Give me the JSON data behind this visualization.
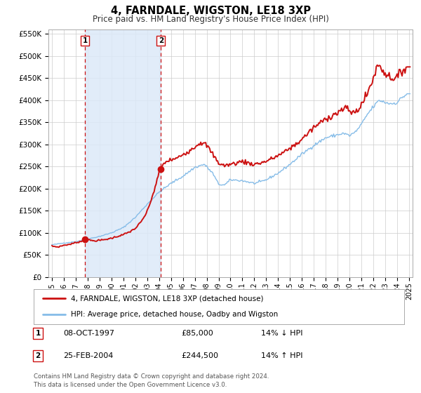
{
  "title": "4, FARNDALE, WIGSTON, LE18 3XP",
  "subtitle": "Price paid vs. HM Land Registry's House Price Index (HPI)",
  "ylim": [
    0,
    560000
  ],
  "xlim_start": 1994.7,
  "xlim_end": 2025.3,
  "yticks": [
    0,
    50000,
    100000,
    150000,
    200000,
    250000,
    300000,
    350000,
    400000,
    450000,
    500000,
    550000
  ],
  "ytick_labels": [
    "£0",
    "£50K",
    "£100K",
    "£150K",
    "£200K",
    "£250K",
    "£300K",
    "£350K",
    "£400K",
    "£450K",
    "£500K",
    "£550K"
  ],
  "xticks": [
    1995,
    1996,
    1997,
    1998,
    1999,
    2000,
    2001,
    2002,
    2003,
    2004,
    2005,
    2006,
    2007,
    2008,
    2009,
    2010,
    2011,
    2012,
    2013,
    2014,
    2015,
    2016,
    2017,
    2018,
    2019,
    2020,
    2021,
    2022,
    2023,
    2024,
    2025
  ],
  "sale1_x": 1997.77,
  "sale1_y": 85000,
  "sale1_label": "1",
  "sale1_date": "08-OCT-1997",
  "sale1_price": "£85,000",
  "sale1_hpi": "14% ↓ HPI",
  "sale2_x": 2004.15,
  "sale2_y": 244500,
  "sale2_label": "2",
  "sale2_date": "25-FEB-2004",
  "sale2_price": "£244,500",
  "sale2_hpi": "14% ↑ HPI",
  "band_color": "#dce9f8",
  "band_alpha": 0.85,
  "line1_color": "#cc1111",
  "line2_color": "#85bce8",
  "dot_color": "#cc1111",
  "vline_color": "#cc1111",
  "legend_label1": "4, FARNDALE, WIGSTON, LE18 3XP (detached house)",
  "legend_label2": "HPI: Average price, detached house, Oadby and Wigston",
  "footer1": "Contains HM Land Registry data © Crown copyright and database right 2024.",
  "footer2": "This data is licensed under the Open Government Licence v3.0.",
  "bg_color": "#ffffff",
  "plot_bg_color": "#ffffff",
  "grid_color": "#cccccc"
}
